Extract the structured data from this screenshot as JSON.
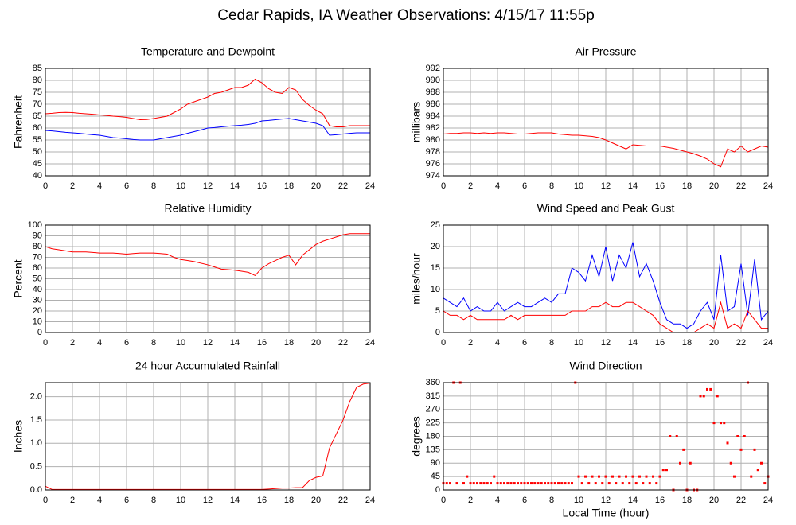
{
  "title": "Cedar Rapids, IA Weather Observations: 4/15/17 11:55p",
  "chart_data": [
    {
      "type": "line",
      "title": "Temperature and Dewpoint",
      "y_label": "Fahrenheit",
      "x": [
        0,
        0.5,
        1,
        1.5,
        2,
        2.5,
        3,
        3.5,
        4,
        4.5,
        5,
        5.5,
        6,
        6.5,
        7,
        7.5,
        8,
        8.5,
        9,
        9.5,
        10,
        10.5,
        11,
        11.5,
        12,
        12.5,
        13,
        13.5,
        14,
        14.5,
        15,
        15.5,
        16,
        16.5,
        17,
        17.5,
        18,
        18.5,
        19,
        19.5,
        20,
        20.5,
        21,
        21.5,
        22,
        22.5,
        23,
        23.5,
        24
      ],
      "series": [
        {
          "color": "#ff0000",
          "values": [
            66,
            66.2,
            66.5,
            66.6,
            66.5,
            66.2,
            66,
            65.8,
            65.5,
            65.3,
            65,
            64.8,
            64.5,
            64,
            63.5,
            63.6,
            64,
            64.5,
            65,
            66.5,
            68,
            70,
            71,
            72,
            73,
            74.5,
            75,
            76,
            77,
            77,
            78,
            80.5,
            79,
            76.5,
            75,
            74.5,
            77,
            76,
            72,
            69.5,
            67.5,
            66,
            61,
            60.5,
            60.5,
            61,
            61,
            61,
            61
          ]
        },
        {
          "color": "#0000ff",
          "values": [
            59,
            58.8,
            58.5,
            58.2,
            58,
            57.8,
            57.5,
            57.2,
            57,
            56.5,
            56,
            55.8,
            55.5,
            55.2,
            55,
            55,
            55,
            55.5,
            56,
            56.5,
            57,
            57.8,
            58.5,
            59.2,
            60,
            60.2,
            60.5,
            60.8,
            61,
            61.2,
            61.5,
            62,
            63,
            63.2,
            63.5,
            63.8,
            64,
            63.5,
            63,
            62.5,
            62,
            61,
            57,
            57.2,
            57.5,
            57.8,
            58,
            58,
            58
          ]
        }
      ],
      "xlim": [
        0,
        24
      ],
      "xticks": [
        0,
        2,
        4,
        6,
        8,
        10,
        12,
        14,
        16,
        18,
        20,
        22,
        24
      ],
      "ylim": [
        40,
        85
      ],
      "yticks": [
        40,
        45,
        50,
        55,
        60,
        65,
        70,
        75,
        80,
        85
      ],
      "grid": true
    },
    {
      "type": "line",
      "title": "Air Pressure",
      "y_label": "millibars",
      "x": [
        0,
        0.5,
        1,
        1.5,
        2,
        2.5,
        3,
        3.5,
        4,
        4.5,
        5,
        5.5,
        6,
        6.5,
        7,
        7.5,
        8,
        8.5,
        9,
        9.5,
        10,
        10.5,
        11,
        11.5,
        12,
        12.5,
        13,
        13.5,
        14,
        14.5,
        15,
        15.5,
        16,
        16.5,
        17,
        17.5,
        18,
        18.5,
        19,
        19.5,
        20,
        20.5,
        21,
        21.5,
        22,
        22.5,
        23,
        23.5,
        24
      ],
      "series": [
        {
          "color": "#ff0000",
          "values": [
            981,
            981.1,
            981.1,
            981.2,
            981.2,
            981.1,
            981.2,
            981.1,
            981.2,
            981.2,
            981.1,
            981,
            981,
            981.1,
            981.2,
            981.2,
            981.2,
            981,
            980.9,
            980.8,
            980.8,
            980.7,
            980.6,
            980.4,
            980,
            979.5,
            979,
            978.5,
            979.2,
            979.1,
            979,
            979,
            979,
            978.8,
            978.6,
            978.3,
            978,
            977.7,
            977.3,
            976.8,
            976,
            975.5,
            978.5,
            978,
            979,
            978,
            978.5,
            979,
            978.8
          ]
        }
      ],
      "xlim": [
        0,
        24
      ],
      "xticks": [
        0,
        2,
        4,
        6,
        8,
        10,
        12,
        14,
        16,
        18,
        20,
        22,
        24
      ],
      "ylim": [
        974,
        992
      ],
      "yticks": [
        974,
        976,
        978,
        980,
        982,
        984,
        986,
        988,
        990,
        992
      ],
      "grid": true
    },
    {
      "type": "line",
      "title": "Relative Humidity",
      "y_label": "Percent",
      "x": [
        0,
        0.5,
        1,
        1.5,
        2,
        2.5,
        3,
        3.5,
        4,
        4.5,
        5,
        5.5,
        6,
        6.5,
        7,
        7.5,
        8,
        8.5,
        9,
        9.5,
        10,
        10.5,
        11,
        11.5,
        12,
        12.5,
        13,
        13.5,
        14,
        14.5,
        15,
        15.5,
        16,
        16.5,
        17,
        17.5,
        18,
        18.5,
        19,
        19.5,
        20,
        20.5,
        21,
        21.5,
        22,
        22.5,
        23,
        23.5,
        24
      ],
      "series": [
        {
          "color": "#ff0000",
          "values": [
            80,
            78,
            77,
            76,
            75,
            75,
            75,
            74.5,
            74,
            74,
            74,
            73.5,
            73,
            73.5,
            74,
            74,
            74,
            73.5,
            73,
            70,
            68,
            67,
            66,
            64.5,
            63,
            61,
            59,
            58.5,
            58,
            57,
            56,
            53,
            60,
            64,
            67,
            70,
            72,
            63,
            72,
            77,
            82,
            85,
            87,
            89,
            91,
            92,
            92,
            92,
            92
          ]
        }
      ],
      "xlim": [
        0,
        24
      ],
      "xticks": [
        0,
        2,
        4,
        6,
        8,
        10,
        12,
        14,
        16,
        18,
        20,
        22,
        24
      ],
      "ylim": [
        0,
        100
      ],
      "yticks": [
        0,
        10,
        20,
        30,
        40,
        50,
        60,
        70,
        80,
        90,
        100
      ],
      "grid": true
    },
    {
      "type": "line",
      "title": "Wind Speed and Peak Gust",
      "y_label": "miles/hour",
      "x": [
        0,
        0.5,
        1,
        1.5,
        2,
        2.5,
        3,
        3.5,
        4,
        4.5,
        5,
        5.5,
        6,
        6.5,
        7,
        7.5,
        8,
        8.5,
        9,
        9.5,
        10,
        10.5,
        11,
        11.5,
        12,
        12.5,
        13,
        13.5,
        14,
        14.5,
        15,
        15.5,
        16,
        16.5,
        17,
        17.5,
        18,
        18.5,
        19,
        19.5,
        20,
        20.5,
        21,
        21.5,
        22,
        22.5,
        23,
        23.5,
        24
      ],
      "series": [
        {
          "color": "#0000ff",
          "values": [
            8,
            7,
            6,
            8,
            5,
            6,
            5,
            5,
            7,
            5,
            6,
            7,
            6,
            6,
            7,
            8,
            7,
            9,
            9,
            15,
            14,
            12,
            18,
            13,
            20,
            12,
            18,
            15,
            21,
            13,
            16,
            12,
            7,
            3,
            2,
            2,
            1,
            2,
            5,
            7,
            3,
            18,
            5,
            6,
            16,
            4,
            17,
            3,
            5
          ]
        },
        {
          "color": "#ff0000",
          "values": [
            5,
            4,
            4,
            3,
            4,
            3,
            3,
            3,
            3,
            3,
            4,
            3,
            4,
            4,
            4,
            4,
            4,
            4,
            4,
            5,
            5,
            5,
            6,
            6,
            7,
            6,
            6,
            7,
            7,
            6,
            5,
            4,
            2,
            1,
            0,
            0,
            0,
            0,
            1,
            2,
            1,
            7,
            1,
            2,
            1,
            5,
            3,
            1,
            1
          ]
        }
      ],
      "xlim": [
        0,
        24
      ],
      "xticks": [
        0,
        2,
        4,
        6,
        8,
        10,
        12,
        14,
        16,
        18,
        20,
        22,
        24
      ],
      "ylim": [
        0,
        25
      ],
      "yticks": [
        0,
        5,
        10,
        15,
        20,
        25
      ],
      "grid": true
    },
    {
      "type": "line",
      "title": "24 hour Accumulated Rainfall",
      "y_label": "Inches",
      "x": [
        0,
        0.5,
        1,
        1.5,
        2,
        2.5,
        3,
        3.5,
        4,
        4.5,
        5,
        5.5,
        6,
        6.5,
        7,
        7.5,
        8,
        8.5,
        9,
        9.5,
        10,
        10.5,
        11,
        11.5,
        12,
        12.5,
        13,
        13.5,
        14,
        14.5,
        15,
        15.5,
        16,
        16.5,
        17,
        17.5,
        18,
        18.5,
        19,
        19.5,
        20,
        20.5,
        21,
        21.5,
        22,
        22.5,
        23,
        23.5,
        24
      ],
      "series": [
        {
          "color": "#ff0000",
          "values": [
            0.08,
            0.01,
            0.01,
            0.01,
            0.01,
            0.01,
            0.01,
            0.01,
            0.01,
            0.01,
            0.01,
            0.01,
            0.01,
            0.01,
            0.01,
            0.01,
            0.01,
            0.01,
            0.01,
            0.01,
            0.01,
            0.01,
            0.01,
            0.01,
            0.01,
            0.01,
            0.01,
            0.01,
            0.01,
            0.01,
            0.01,
            0.01,
            0.01,
            0.02,
            0.03,
            0.04,
            0.04,
            0.05,
            0.05,
            0.2,
            0.27,
            0.3,
            0.9,
            1.2,
            1.5,
            1.9,
            2.2,
            2.27,
            2.29
          ]
        }
      ],
      "xlim": [
        0,
        24
      ],
      "xticks": [
        0,
        2,
        4,
        6,
        8,
        10,
        12,
        14,
        16,
        18,
        20,
        22,
        24
      ],
      "ylim": [
        0,
        2.3
      ],
      "yticks": [
        {
          "value": 0,
          "label": "0.0"
        },
        0.5,
        {
          "value": 1,
          "label": "1.0"
        },
        1.5,
        {
          "value": 2,
          "label": "2.0"
        }
      ],
      "grid": true
    },
    {
      "type": "scatter",
      "title": "Wind Direction",
      "y_label": "degrees",
      "x_label": "Local Time (hour)",
      "x": [
        0,
        0.25,
        0.5,
        0.75,
        1,
        1.25,
        1.5,
        1.75,
        2,
        2.25,
        2.5,
        2.75,
        3,
        3.25,
        3.5,
        3.75,
        4,
        4.25,
        4.5,
        4.75,
        5,
        5.25,
        5.5,
        5.75,
        6,
        6.25,
        6.5,
        6.75,
        7,
        7.25,
        7.5,
        7.75,
        8,
        8.25,
        8.5,
        8.75,
        9,
        9.25,
        9.5,
        9.75,
        10,
        10.25,
        10.5,
        10.75,
        11,
        11.25,
        11.5,
        11.75,
        12,
        12.25,
        12.5,
        12.75,
        13,
        13.25,
        13.5,
        13.75,
        14,
        14.25,
        14.5,
        14.75,
        15,
        15.25,
        15.5,
        15.75,
        16,
        16.25,
        16.5,
        16.75,
        17,
        17.25,
        17.5,
        17.75,
        18,
        18.25,
        18.5,
        18.75,
        19,
        19.25,
        19.5,
        19.75,
        20,
        20.25,
        20.5,
        20.75,
        21,
        21.25,
        21.5,
        21.75,
        22,
        22.25,
        22.5,
        22.75,
        23,
        23.25,
        23.5,
        23.75,
        24
      ],
      "series": [
        {
          "color": "#ff0000",
          "values": [
            22.5,
            22.5,
            22.5,
            360,
            22.5,
            360,
            22.5,
            45,
            22.5,
            22.5,
            22.5,
            22.5,
            22.5,
            22.5,
            22.5,
            45,
            22.5,
            22.5,
            22.5,
            22.5,
            22.5,
            22.5,
            22.5,
            22.5,
            22.5,
            22.5,
            22.5,
            22.5,
            22.5,
            22.5,
            22.5,
            22.5,
            22.5,
            22.5,
            22.5,
            22.5,
            22.5,
            22.5,
            22.5,
            360,
            45,
            22.5,
            45,
            22.5,
            45,
            22.5,
            45,
            22.5,
            45,
            22.5,
            45,
            22.5,
            45,
            22.5,
            45,
            22.5,
            45,
            22.5,
            45,
            22.5,
            45,
            22.5,
            45,
            22.5,
            45,
            67.5,
            67.5,
            180,
            0,
            180,
            90,
            135,
            0,
            90,
            0,
            0,
            315,
            315,
            337.5,
            337.5,
            225,
            315,
            225,
            225,
            157.5,
            90,
            45,
            180,
            135,
            180,
            360,
            45,
            135,
            67.5,
            90,
            22.5,
            45
          ]
        }
      ],
      "xlim": [
        0,
        24
      ],
      "xticks": [
        0,
        2,
        4,
        6,
        8,
        10,
        12,
        14,
        16,
        18,
        20,
        22,
        24
      ],
      "ylim": [
        0,
        360
      ],
      "yticks": [
        0,
        45,
        90,
        135,
        180,
        225,
        270,
        315,
        360
      ],
      "grid": true
    }
  ]
}
